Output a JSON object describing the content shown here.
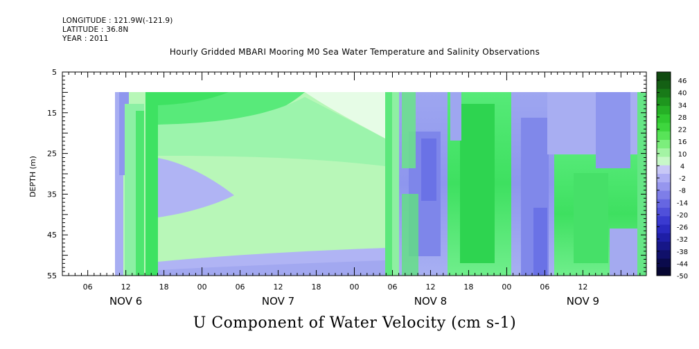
{
  "header": {
    "longitude": "LONGITUDE : 121.9W(-121.9)",
    "latitude": "LATITUDE : 36.8N",
    "year": "YEAR : 2011"
  },
  "chart_data": {
    "type": "heatmap",
    "title": "Hourly Gridded MBARI Mooring M0 Sea Water Temperature and Salinity Observations",
    "xlabel": "U Component of Water Velocity (cm s-1)",
    "ylabel": "DEPTH (m)",
    "y_ticks": [
      "5",
      "15",
      "25",
      "35",
      "45",
      "55"
    ],
    "ylim": [
      55,
      5
    ],
    "x_hour_ticks": [
      "06",
      "12",
      "18",
      "00",
      "06",
      "12",
      "18",
      "00",
      "06",
      "12",
      "18",
      "00",
      "06",
      "12"
    ],
    "x_day_labels": [
      "NOV  6",
      "NOV  7",
      "NOV  8",
      "NOV  9"
    ],
    "data_depth_range": [
      10,
      55
    ],
    "colorbar": {
      "labels": [
        "46",
        "40",
        "34",
        "28",
        "22",
        "16",
        "10",
        "4",
        "-2",
        "-8",
        "-14",
        "-20",
        "-26",
        "-32",
        "-38",
        "-44",
        "-50"
      ],
      "colors": [
        "#104a10",
        "#146014",
        "#187a18",
        "#1e961e",
        "#26b026",
        "#30c830",
        "#3ed63e",
        "#58e458",
        "#7cee7c",
        "#a4f4a4",
        "#c8f8c8",
        "#c8c8f6",
        "#aeaef4",
        "#9696ee",
        "#7e7ee8",
        "#6666e2",
        "#5050da",
        "#3a3ad0",
        "#2a2ac0",
        "#1e1ea6",
        "#161688",
        "#10106a",
        "#0a0a4c",
        "#060632"
      ]
    }
  }
}
